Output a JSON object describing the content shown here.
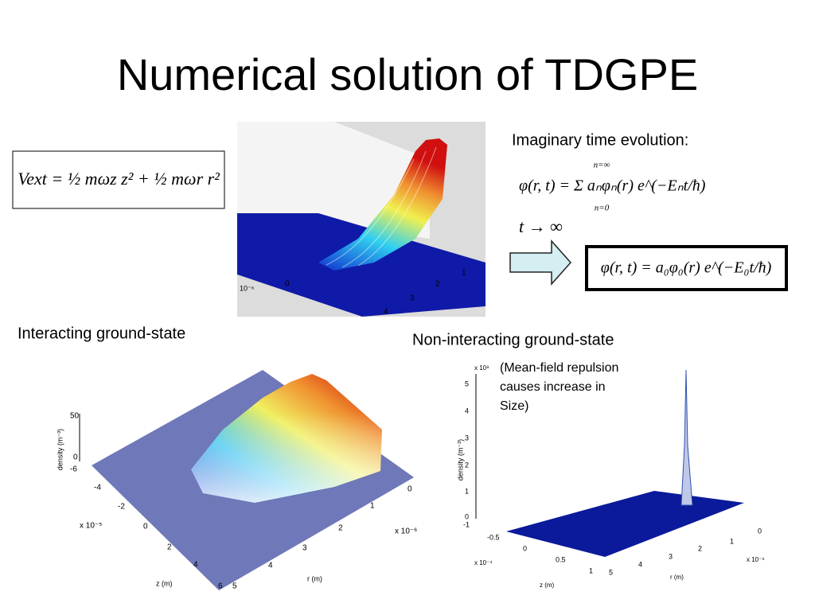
{
  "title": "Numerical solution of TDGPE",
  "vext_formula": "Vext = ½ mωz z² + ½ mωr r²",
  "imaginary_time": {
    "heading": "Imaginary time evolution:",
    "sum_formula": "φ(r, t) = Σ aₙφₙ(r) e^(−Eₙt/ħ)",
    "sum_upper": "n=∞",
    "sum_lower": "n=0",
    "limit": "t → ∞",
    "result_formula": "φ(r, t) = a₀φ₀(r) e^(−E₀t/ħ)"
  },
  "captions": {
    "interacting": "Interacting ground-state",
    "non_interacting": "Non-interacting ground-state",
    "note": [
      "(Mean-field repulsion",
      "causes increase in",
      "Size)"
    ]
  },
  "plot_small": {
    "scale": "10⁻⁶",
    "ticks": [
      "0",
      "1",
      "2",
      "3",
      "4"
    ]
  },
  "plot_interacting": {
    "z_label": "density (m⁻³)",
    "z_ticks": [
      "50",
      "0"
    ],
    "y_scale": "x 10⁻⁵",
    "y_label": "z (m)",
    "y_ticks": [
      "-6",
      "-4",
      "-2",
      "0",
      "2",
      "4",
      "6"
    ],
    "x_scale": "x 10⁻⁶",
    "x_label": "r (m)",
    "x_ticks": [
      "0",
      "1",
      "2",
      "3",
      "4",
      "5"
    ]
  },
  "plot_non_interacting": {
    "z_scale": "x 10⁸",
    "z_label": "density (m⁻³)",
    "z_ticks": [
      "5",
      "4",
      "3",
      "2",
      "1",
      "0"
    ],
    "y_scale": "x 10⁻⁴",
    "y_label": "z (m)",
    "y_ticks": [
      "-1",
      "-0.5",
      "0",
      "0.5",
      "1"
    ],
    "x_scale": "x 10⁻⁶",
    "x_label": "r (m)",
    "x_ticks": [
      "0",
      "1",
      "2",
      "3",
      "4",
      "5"
    ]
  }
}
